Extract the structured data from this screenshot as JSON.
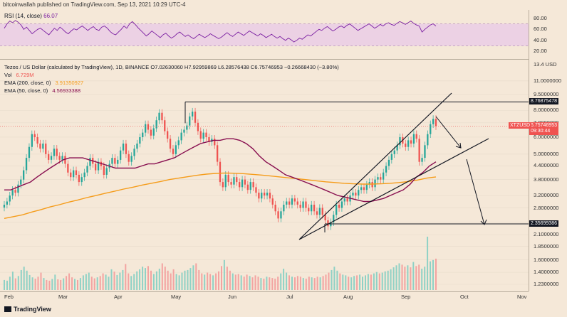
{
  "caption": "bitcoinwallah published on TradingView.com, Sep 13, 2021 10:29 UTC-4",
  "rsi": {
    "label": "RSI (14, close)",
    "value": "66.07",
    "axis_labels": [
      "80.00",
      "60.00",
      "40.00",
      "20.00"
    ],
    "band": [
      30,
      70
    ],
    "values": [
      62,
      70,
      75,
      72,
      76,
      73,
      68,
      60,
      64,
      58,
      52,
      56,
      60,
      62,
      58,
      54,
      50,
      56,
      62,
      58,
      64,
      60,
      55,
      52,
      57,
      61,
      59,
      63,
      66,
      62,
      58,
      62,
      65,
      60,
      58,
      64,
      66,
      62,
      56,
      52,
      50,
      55,
      60,
      66,
      62,
      70,
      74,
      69,
      63,
      58,
      53,
      48,
      52,
      57,
      53,
      49,
      45,
      50,
      53,
      48,
      44,
      47,
      52,
      55,
      51,
      47,
      50,
      46,
      43,
      47,
      51,
      48,
      45,
      48,
      52,
      49,
      46,
      43,
      46,
      50,
      54,
      50,
      47,
      51,
      55,
      52,
      49,
      53,
      57,
      54,
      51,
      48,
      52,
      49,
      45,
      48,
      51,
      47,
      44,
      47,
      43,
      40,
      44,
      41,
      37,
      40,
      44,
      42,
      46,
      50,
      48,
      52,
      56,
      60,
      58,
      62,
      65,
      61,
      57,
      60,
      64,
      66,
      63,
      67,
      70,
      66,
      62,
      58,
      61,
      64,
      67,
      70,
      66,
      62,
      65,
      69,
      66,
      70,
      72,
      69,
      67,
      71,
      74,
      72,
      69,
      72,
      75,
      71,
      68,
      66,
      55,
      60,
      64,
      68,
      70,
      66
    ]
  },
  "legend": {
    "title": "Tezos / US Dollar (calculated by TradingView), 1D, BINANCE",
    "ohlc": "O7.02630060 H7.92959869 L6.28576438 C6.75746953 −0.26668430 (−3.80%)",
    "vol_label": "Vol",
    "vol_value": "6.729M",
    "ema200_label": "EMA (200, close, 0)",
    "ema200_value": "3.91350927",
    "ema50_label": "EMA (50, close, 0)",
    "ema50_value": "4.56933388"
  },
  "colors": {
    "up": "#26a69a",
    "down": "#ef5350",
    "ema50": "#880e4f",
    "ema200": "#f59c1a",
    "rsi": "#7b1fa2",
    "rsi_band": "#e1bee7",
    "background": "#f5e8d8",
    "ticker_tag": "#ef5350"
  },
  "price_axis": {
    "log_scale_label": "13.4 USD",
    "labels": [
      "11.0000000",
      "9.5000000",
      "8.0000000",
      "7.0000000",
      "6.0000000",
      "5.0000000",
      "4.4000000",
      "3.8000000",
      "3.2000000",
      "2.8000000",
      "2.4000000",
      "2.1000000",
      "1.8500000",
      "1.6000000",
      "1.4000000",
      "1.2300000"
    ],
    "label_values": [
      11.0,
      9.5,
      8.0,
      7.0,
      6.0,
      5.0,
      4.4,
      3.8,
      3.2,
      2.8,
      2.4,
      2.1,
      1.85,
      1.6,
      1.4,
      1.23
    ],
    "resistance_tag": "8.76875478",
    "resistance_value": 8.76875478,
    "support_tag": "2.35699386",
    "support_value": 2.35699386,
    "ticker": "XTZUSD",
    "current_price": "6.75746953",
    "countdown": "09:30:44",
    "current_value": 6.757
  },
  "time_axis": {
    "labels": [
      "Feb",
      "Mar",
      "Apr",
      "May",
      "Jun",
      "Jul",
      "Aug",
      "Sep",
      "Oct",
      "Nov"
    ]
  },
  "footer": {
    "brand": "TradingView"
  },
  "chart_data": {
    "type": "candlestick",
    "symbol": "XTZUSD",
    "interval": "1D",
    "scale": "log",
    "y_range": [
      1.23,
      13.4
    ],
    "closes": [
      2.9,
      3.0,
      3.2,
      3.4,
      3.3,
      3.6,
      3.8,
      4.2,
      4.8,
      5.4,
      6.2,
      6.0,
      5.6,
      5.3,
      5.6,
      5.0,
      4.7,
      4.9,
      5.3,
      4.9,
      4.7,
      4.9,
      4.5,
      4.1,
      3.9,
      4.2,
      4.0,
      3.7,
      3.9,
      4.1,
      4.4,
      4.8,
      4.5,
      4.2,
      4.6,
      4.4,
      4.0,
      4.3,
      4.5,
      4.8,
      4.5,
      4.7,
      5.2,
      5.6,
      5.0,
      4.6,
      4.9,
      5.3,
      5.6,
      6.0,
      6.3,
      6.9,
      6.5,
      6.1,
      6.6,
      7.2,
      7.8,
      7.2,
      6.4,
      5.9,
      5.3,
      5.0,
      5.5,
      5.8,
      6.3,
      6.5,
      6.8,
      7.5,
      7.9,
      7.0,
      6.4,
      5.9,
      6.3,
      6.0,
      5.7,
      5.9,
      5.5,
      4.6,
      3.7,
      3.5,
      4.0,
      3.7,
      3.6,
      3.9,
      3.7,
      3.5,
      3.8,
      3.6,
      3.4,
      3.7,
      3.5,
      3.3,
      3.1,
      3.3,
      3.2,
      3.3,
      3.1,
      2.9,
      2.7,
      2.5,
      2.7,
      2.9,
      3.0,
      2.9,
      3.1,
      3.0,
      2.9,
      2.8,
      3.0,
      2.8,
      2.7,
      2.9,
      2.7,
      2.6,
      2.8,
      2.6,
      2.45,
      2.3,
      2.4,
      2.6,
      2.9,
      2.8,
      3.0,
      3.1,
      3.0,
      3.2,
      3.3,
      3.2,
      3.4,
      3.5,
      3.4,
      3.6,
      3.7,
      3.5,
      3.8,
      3.9,
      3.8,
      4.1,
      4.4,
      4.7,
      5.0,
      5.2,
      5.5,
      6.0,
      5.6,
      5.4,
      5.8,
      5.6,
      6.2,
      5.9,
      4.6,
      4.8,
      5.5,
      6.2,
      6.9,
      7.3,
      6.75
    ],
    "ema50": [
      3.4,
      3.4,
      3.5,
      3.6,
      3.7,
      3.9,
      4.1,
      4.3,
      4.5,
      4.7,
      4.8,
      4.8,
      4.8,
      4.7,
      4.6,
      4.5,
      4.4,
      4.3,
      4.3,
      4.3,
      4.3,
      4.4,
      4.5,
      4.5,
      4.6,
      4.7,
      4.8,
      5.0,
      5.2,
      5.4,
      5.6,
      5.7,
      5.8,
      5.8,
      5.9,
      5.9,
      5.8,
      5.6,
      5.3,
      4.9,
      4.6,
      4.4,
      4.2,
      4.0,
      3.9,
      3.8,
      3.7,
      3.6,
      3.5,
      3.4,
      3.3,
      3.2,
      3.15,
      3.1,
      3.05,
      3.0,
      3.0,
      3.05,
      3.1,
      3.2,
      3.3,
      3.4,
      3.6,
      3.9,
      4.1,
      4.4,
      4.6
    ],
    "ema200": [
      2.5,
      2.55,
      2.6,
      2.68,
      2.75,
      2.83,
      2.9,
      2.98,
      3.05,
      3.13,
      3.2,
      3.28,
      3.35,
      3.43,
      3.5,
      3.58,
      3.65,
      3.72,
      3.8,
      3.86,
      3.92,
      3.98,
      4.03,
      4.06,
      4.08,
      4.07,
      4.05,
      4.02,
      3.99,
      3.95,
      3.91,
      3.87,
      3.83,
      3.79,
      3.75,
      3.71,
      3.68,
      3.65,
      3.63,
      3.62,
      3.62,
      3.63,
      3.65,
      3.68,
      3.72,
      3.78,
      3.86,
      3.91
    ],
    "volume": [
      30,
      28,
      40,
      55,
      35,
      42,
      60,
      70,
      58,
      45,
      38,
      34,
      40,
      52,
      36,
      30,
      28,
      33,
      46,
      32,
      30,
      35,
      42,
      50,
      38,
      33,
      30,
      36,
      44,
      48,
      52,
      40,
      35,
      38,
      42,
      50,
      46,
      40,
      62,
      55,
      45,
      52,
      60,
      78,
      50,
      42,
      48,
      56,
      62,
      70,
      66,
      72,
      58,
      48,
      56,
      64,
      80,
      70,
      58,
      50,
      62,
      48,
      44,
      52,
      58,
      60,
      66,
      74,
      80,
      60,
      50,
      46,
      52,
      48,
      44,
      50,
      56,
      72,
      90,
      70,
      58,
      50,
      46,
      48,
      44,
      40,
      46,
      42,
      38,
      44,
      40,
      36,
      34,
      40,
      38,
      36,
      34,
      40,
      50,
      64,
      52,
      44,
      40,
      38,
      42,
      40,
      36,
      34,
      40,
      38,
      36,
      40,
      38,
      42,
      46,
      52,
      60,
      70,
      58,
      50,
      46,
      44,
      40,
      38,
      42,
      44,
      46,
      40,
      44,
      48,
      46,
      50,
      54,
      50,
      52,
      56,
      58,
      62,
      68,
      74,
      80,
      76,
      70,
      74,
      68,
      84,
      72,
      76,
      64,
      70,
      160,
      86,
      90,
      94
    ],
    "lines": {
      "resistance": 8.76875478,
      "support": 2.35699386,
      "wedge": "rising wedge"
    }
  }
}
